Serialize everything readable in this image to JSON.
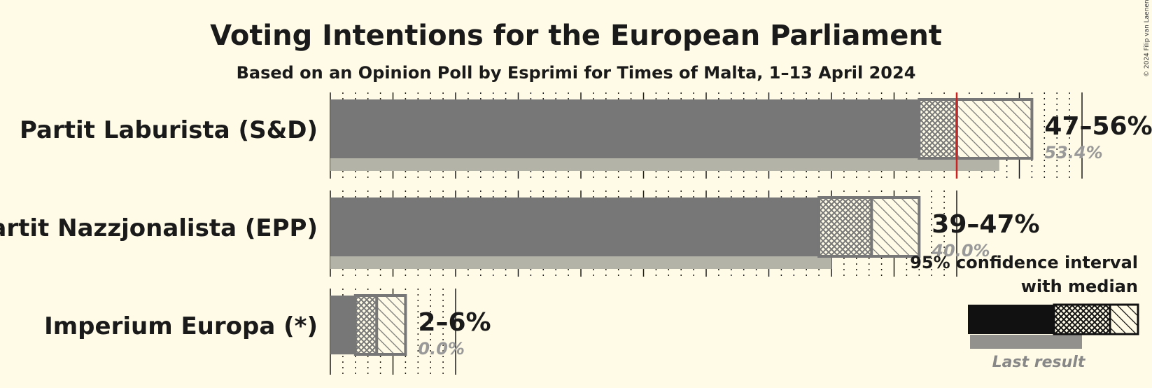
{
  "chart_data": {
    "type": "bar",
    "title": "Voting Intentions for the European Parliament",
    "subtitle": "Based on an Opinion Poll by Esprimi for Times of Malta, 1–13 April 2024",
    "copyright": "© 2024 Filip van Laenen",
    "threshold_line": 50,
    "xlim": [
      0,
      56
    ],
    "parties": [
      {
        "name": "Partit Laburista (S&D)",
        "ci95": [
          47,
          56
        ],
        "ci80": [
          47.2,
          51.5
        ],
        "median": 50,
        "range_label": "47–56%",
        "last_result": 53.4,
        "last_result_label": "53.4%"
      },
      {
        "name": "Partit Nazzjonalista (EPP)",
        "ci95": [
          39,
          47
        ],
        "ci80": [
          39,
          43.2
        ],
        "median": 43.2,
        "range_label": "39–47%",
        "last_result": 40.0,
        "last_result_label": "40.0%"
      },
      {
        "name": "Imperium Europa (*)",
        "ci95": [
          2,
          6
        ],
        "ci80": [
          2.4,
          3.7
        ],
        "median": 3.7,
        "range_label": "2–6%",
        "last_result": 0.0,
        "last_result_label": "0.0%"
      }
    ],
    "legend": {
      "ci_label_line1": "95% confidence interval",
      "ci_label_line2": "with median",
      "last_result_label": "Last result"
    },
    "colors": {
      "background": "#fffbe6",
      "bar": "#777777",
      "last_result": "#b3b3a8",
      "threshold": "#cc2222",
      "legend_bar": "#111111",
      "text": "#1a1a1a",
      "muted_text": "#999999"
    }
  }
}
